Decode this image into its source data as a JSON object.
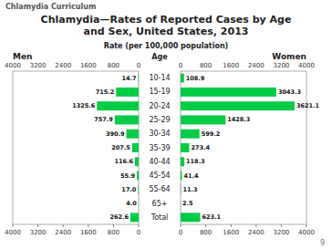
{
  "chart_data": {
    "type": "bar",
    "orientation": "horizontal",
    "title": "Chlamydia—Rates of Reported Cases by Age\nand Sex, United States, 2013",
    "subtitle": "Chlamydia Curriculum",
    "xlabel": "Rate (per 100,000 population)",
    "ylabel": "Age",
    "categories": [
      "10-14",
      "15-19",
      "20-24",
      "25-29",
      "30-34",
      "35-39",
      "40-44",
      "45-54",
      "55-64",
      "65+",
      "Total"
    ],
    "series": [
      {
        "name": "Men",
        "color": "#00cc44",
        "values": [
          14.7,
          715.2,
          1325.6,
          757.9,
          390.9,
          207.5,
          116.6,
          55.9,
          17.0,
          4.0,
          262.6
        ],
        "value_labels": [
          "14.7",
          "715.2",
          "1325.6",
          "757.9",
          "390.9",
          "207.5",
          "116.6",
          "55.9",
          "17.0",
          "4.0",
          "262.6"
        ]
      },
      {
        "name": "Women",
        "color": "#00cc44",
        "values": [
          108.9,
          3043.3,
          3621.1,
          1428.3,
          599.2,
          273.4,
          118.3,
          41.4,
          11.3,
          2.5,
          623.1
        ],
        "value_labels": [
          "108.9",
          "3043.3",
          "3621.1",
          "1428.3",
          "599.2",
          "273.4",
          "118.3",
          "41.4",
          "11.3",
          "2.5",
          "623.1"
        ]
      }
    ],
    "xlim": [
      0,
      4000
    ],
    "xticks": [
      0,
      800,
      1600,
      2400,
      3200,
      4000
    ],
    "data_labels": true,
    "annotations": [
      "9"
    ]
  }
}
